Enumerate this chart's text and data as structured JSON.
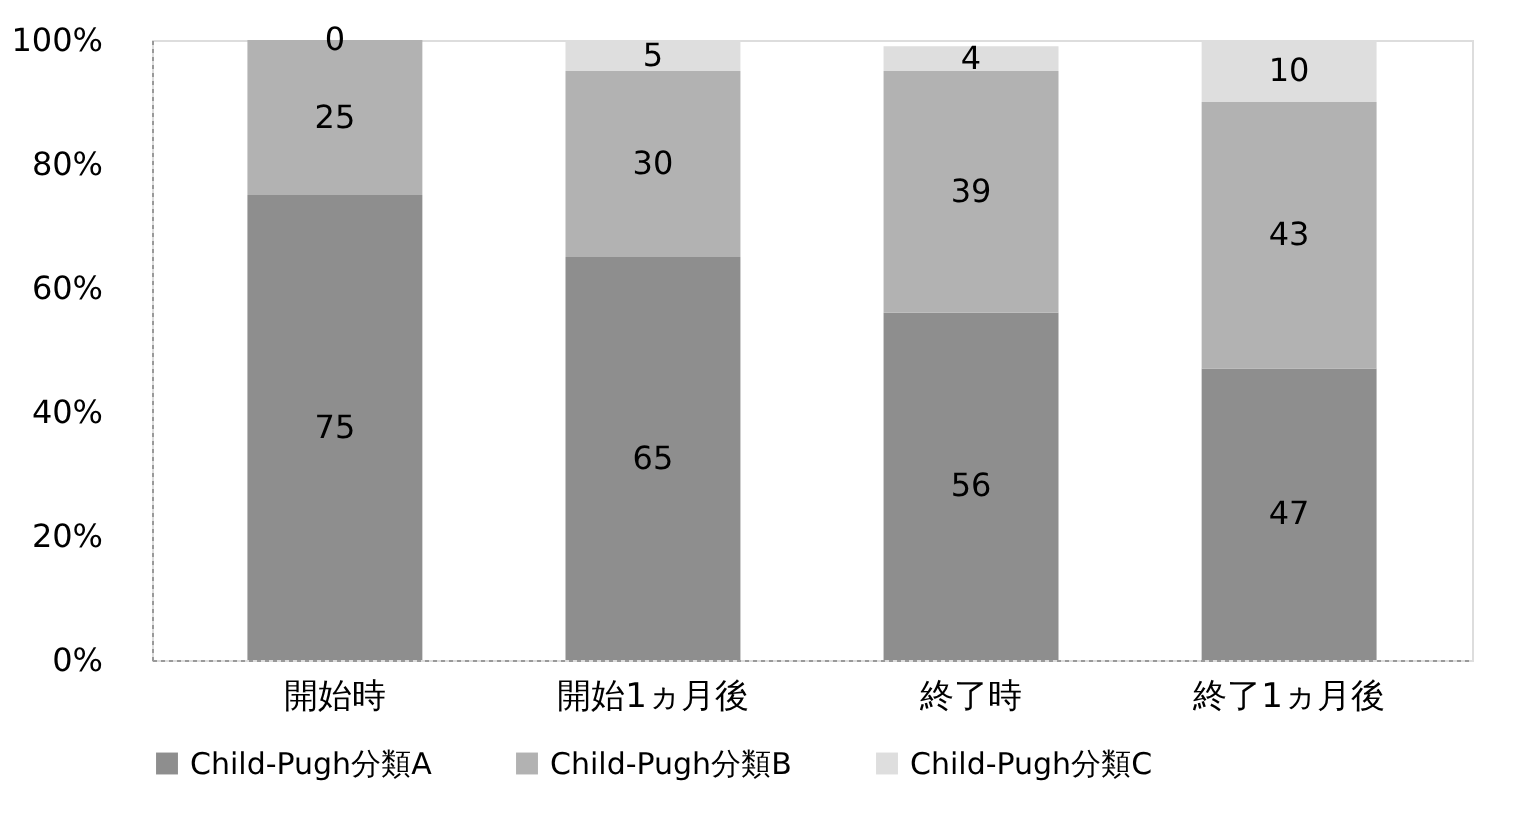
{
  "chart_data": {
    "type": "bar",
    "stacked": true,
    "data_labels": true,
    "legend": "bottom",
    "grid": false,
    "categories": [
      "開始時",
      "開始1ヵ月後",
      "終了時",
      "終了1ヵ月後"
    ],
    "series": [
      {
        "name": "Child-Pugh分類A",
        "color": "#8e8e8e",
        "values": [
          75,
          65,
          56,
          47
        ]
      },
      {
        "name": "Child-Pugh分類B",
        "color": "#b2b2b2",
        "values": [
          25,
          30,
          39,
          43
        ]
      },
      {
        "name": "Child-Pugh分類C",
        "color": "#dedede",
        "values": [
          0,
          5,
          4,
          10
        ]
      }
    ],
    "ylim": [
      0,
      100
    ],
    "yticks": [
      {
        "value": 0,
        "label": "0%"
      },
      {
        "value": 20,
        "label": "20%"
      },
      {
        "value": 40,
        "label": "40%"
      },
      {
        "value": 60,
        "label": "60%"
      },
      {
        "value": 80,
        "label": "80%"
      },
      {
        "value": 100,
        "label": "100%"
      }
    ]
  }
}
